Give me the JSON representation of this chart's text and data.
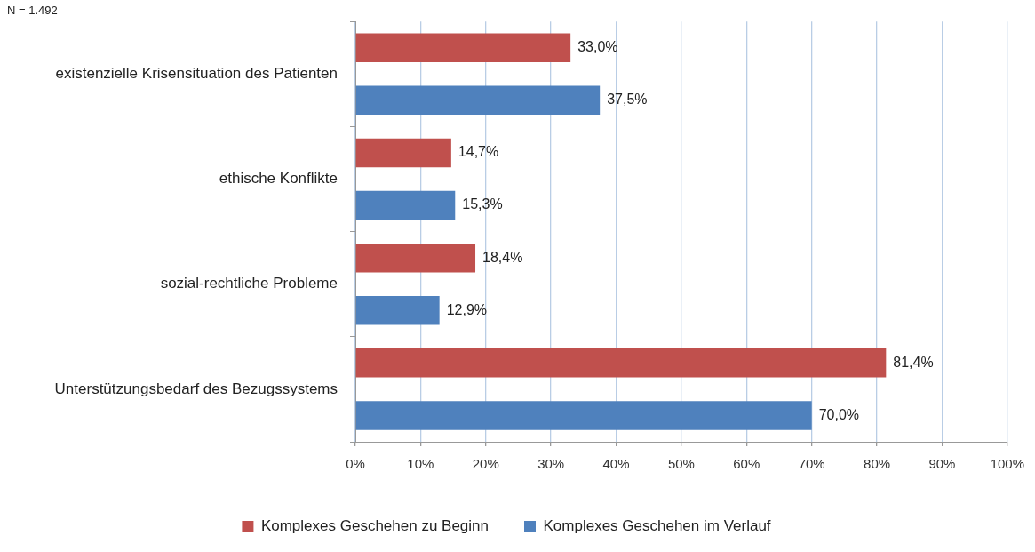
{
  "chart_data": {
    "type": "bar",
    "orientation": "horizontal",
    "categories": [
      "existenzielle Krisensituation des Patienten",
      "ethische Konflikte",
      "sozial-rechtliche Probleme",
      "Unterstützungsbedarf des Bezugssystems"
    ],
    "series": [
      {
        "name": "Komplexes Geschehen zu Beginn",
        "color": "#c0504d",
        "values": [
          33.0,
          14.7,
          18.4,
          81.4
        ],
        "value_labels": [
          "33,0%",
          "14,7%",
          "18,4%",
          "81,4%"
        ]
      },
      {
        "name": "Komplexes Geschehen im Verlauf",
        "color": "#4f81bd",
        "values": [
          37.5,
          15.3,
          12.9,
          70.0
        ],
        "value_labels": [
          "37,5%",
          "15,3%",
          "12,9%",
          "70,0%"
        ]
      }
    ],
    "xlim": [
      0,
      100
    ],
    "xticks": [
      {
        "value": 0,
        "label": "0%"
      },
      {
        "value": 10,
        "label": "10%"
      },
      {
        "value": 20,
        "label": "20%"
      },
      {
        "value": 30,
        "label": "30%"
      },
      {
        "value": 40,
        "label": "40%"
      },
      {
        "value": 50,
        "label": "50%"
      },
      {
        "value": 60,
        "label": "60%"
      },
      {
        "value": 70,
        "label": "70%"
      },
      {
        "value": 80,
        "label": "80%"
      },
      {
        "value": 90,
        "label": "90%"
      },
      {
        "value": 100,
        "label": "100%"
      }
    ],
    "grid": "x",
    "legend": "bottom",
    "annotations": [
      "N = 1.492"
    ]
  }
}
